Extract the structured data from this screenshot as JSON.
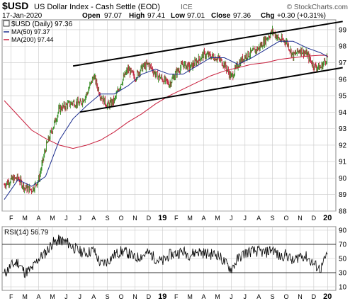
{
  "header": {
    "symbol": "$USD",
    "name": "US Dollar Index - Cash Settle (EOD)",
    "exchange": "ICE",
    "watermark": "© StockCharts.com",
    "date": "17-Jan-2020",
    "open_label": "Open",
    "open": "97.07",
    "high_label": "High",
    "high": "97.41",
    "low_label": "Low",
    "low": "97.01",
    "close_label": "Close",
    "close": "97.36",
    "chg_label": "Chg",
    "chg": "+0.30 (+0.31%)"
  },
  "legend": {
    "price": "$USD (Daily) 97.36",
    "ma50": "MA(50) 97.37",
    "ma200": "MA(200) 97.44",
    "rsi": "RSI(14) 56.79"
  },
  "colors": {
    "up": "#2f8a1e",
    "down": "#c0203a",
    "ma50": "#1e2f8f",
    "ma200": "#c81e3c",
    "channel": "#000000",
    "grid": "#c8c8c8",
    "rsi_line": "#000000",
    "rsi_fill": "#808080"
  },
  "chart_data": [
    {
      "type": "line",
      "title": "$USD US Dollar Index - Cash Settle (EOD)",
      "x_months": [
        "F",
        "M",
        "A",
        "M",
        "J",
        "J",
        "A",
        "S",
        "O",
        "N",
        "D",
        "19",
        "F",
        "M",
        "A",
        "M",
        "J",
        "J",
        "A",
        "S",
        "O",
        "N",
        "D",
        "20"
      ],
      "x_start": "2018-02",
      "x_end": "2020-01-17",
      "ylim": [
        88,
        99.6
      ],
      "y_ticks": [
        88,
        89,
        90,
        91,
        92,
        93,
        94,
        95,
        96,
        97,
        98,
        99
      ],
      "y_scale": "linear",
      "grid": true,
      "legend_position": "top-left",
      "series": [
        {
          "name": "$USD (Daily)",
          "kind": "ohlc",
          "points": [
            [
              0,
              89.6
            ],
            [
              0.5,
              89.9
            ],
            [
              1,
              90.0
            ],
            [
              1.5,
              89.4
            ],
            [
              2,
              89.3
            ],
            [
              2.5,
              89.9
            ],
            [
              3,
              91.8
            ],
            [
              3.5,
              93.0
            ],
            [
              4,
              94.2
            ],
            [
              4.5,
              94.4
            ],
            [
              5,
              94.6
            ],
            [
              5.5,
              94.5
            ],
            [
              6,
              95.1
            ],
            [
              6.5,
              96.2
            ],
            [
              7,
              95.0
            ],
            [
              7.5,
              94.4
            ],
            [
              8,
              94.7
            ],
            [
              8.5,
              95.8
            ],
            [
              9,
              96.6
            ],
            [
              9.5,
              96.1
            ],
            [
              10,
              96.7
            ],
            [
              10.5,
              96.9
            ],
            [
              11,
              96.3
            ],
            [
              11.5,
              96.0
            ],
            [
              12,
              95.7
            ],
            [
              12.5,
              96.4
            ],
            [
              13,
              96.9
            ],
            [
              13.5,
              96.7
            ],
            [
              14,
              97.1
            ],
            [
              14.5,
              97.5
            ],
            [
              15,
              97.4
            ],
            [
              15.5,
              97.3
            ],
            [
              16,
              96.9
            ],
            [
              16.5,
              96.1
            ],
            [
              17,
              96.9
            ],
            [
              17.5,
              97.4
            ],
            [
              18,
              97.6
            ],
            [
              18.5,
              97.9
            ],
            [
              19,
              98.4
            ],
            [
              19.5,
              98.9
            ],
            [
              20,
              98.4
            ],
            [
              20.5,
              98.3
            ],
            [
              21,
              97.4
            ],
            [
              21.5,
              97.8
            ],
            [
              22,
              97.5
            ],
            [
              22.5,
              96.8
            ],
            [
              23,
              96.7
            ],
            [
              23.5,
              97.36
            ]
          ]
        },
        {
          "name": "MA(50)",
          "kind": "line",
          "points": [
            [
              0,
              88.7
            ],
            [
              1,
              89.9
            ],
            [
              2,
              89.5
            ],
            [
              3,
              90.1
            ],
            [
              4,
              92.3
            ],
            [
              5,
              93.6
            ],
            [
              6,
              94.4
            ],
            [
              7,
              95.1
            ],
            [
              8,
              95.1
            ],
            [
              9,
              95.6
            ],
            [
              10,
              96.3
            ],
            [
              11,
              96.6
            ],
            [
              12,
              96.3
            ],
            [
              13,
              96.3
            ],
            [
              14,
              96.8
            ],
            [
              15,
              97.3
            ],
            [
              16,
              97.3
            ],
            [
              17,
              96.9
            ],
            [
              18,
              97.3
            ],
            [
              19,
              97.8
            ],
            [
              20,
              98.3
            ],
            [
              21,
              98.3
            ],
            [
              22,
              97.9
            ],
            [
              23,
              97.6
            ],
            [
              23.5,
              97.37
            ]
          ]
        },
        {
          "name": "MA(200)",
          "kind": "line",
          "points": [
            [
              0,
              94.7
            ],
            [
              1,
              93.8
            ],
            [
              2,
              92.9
            ],
            [
              3,
              92.4
            ],
            [
              4,
              92.0
            ],
            [
              5,
              91.8
            ],
            [
              6,
              92.0
            ],
            [
              7,
              92.3
            ],
            [
              8,
              92.8
            ],
            [
              9,
              93.4
            ],
            [
              10,
              93.9
            ],
            [
              11,
              94.5
            ],
            [
              12,
              95.0
            ],
            [
              13,
              95.4
            ],
            [
              14,
              95.8
            ],
            [
              15,
              96.2
            ],
            [
              16,
              96.5
            ],
            [
              17,
              96.7
            ],
            [
              18,
              96.9
            ],
            [
              19,
              97.0
            ],
            [
              20,
              97.2
            ],
            [
              21,
              97.3
            ],
            [
              22,
              97.4
            ],
            [
              23,
              97.45
            ],
            [
              23.5,
              97.44
            ]
          ]
        },
        {
          "name": "channel-upper",
          "kind": "trendline",
          "points": [
            [
              5.0,
              96.8
            ],
            [
              24.6,
              99.5
            ]
          ]
        },
        {
          "name": "channel-lower",
          "kind": "trendline",
          "points": [
            [
              5.5,
              94.0
            ],
            [
              24.6,
              96.7
            ]
          ]
        }
      ]
    },
    {
      "type": "line",
      "title": "RSI(14) 56.79",
      "ylim": [
        5,
        95
      ],
      "y_ticks": [
        10,
        30,
        50,
        70,
        90
      ],
      "reference_lines": [
        30,
        70
      ],
      "grid": true,
      "series": [
        {
          "name": "RSI(14)",
          "points": [
            [
              0,
              28
            ],
            [
              0.5,
              40
            ],
            [
              1,
              45
            ],
            [
              1.5,
              30
            ],
            [
              2,
              35
            ],
            [
              2.5,
              50
            ],
            [
              3,
              58
            ],
            [
              3.5,
              72
            ],
            [
              4,
              76
            ],
            [
              4.5,
              74
            ],
            [
              5,
              66
            ],
            [
              5.5,
              60
            ],
            [
              6,
              58
            ],
            [
              6.5,
              62
            ],
            [
              7,
              42
            ],
            [
              7.5,
              46
            ],
            [
              8,
              55
            ],
            [
              8.5,
              60
            ],
            [
              9,
              58
            ],
            [
              9.5,
              50
            ],
            [
              10,
              54
            ],
            [
              10.5,
              58
            ],
            [
              11,
              50
            ],
            [
              11.5,
              45
            ],
            [
              12,
              55
            ],
            [
              12.5,
              57
            ],
            [
              13,
              60
            ],
            [
              13.5,
              55
            ],
            [
              14,
              60
            ],
            [
              14.5,
              58
            ],
            [
              15,
              56
            ],
            [
              15.5,
              56
            ],
            [
              16,
              45
            ],
            [
              16.5,
              35
            ],
            [
              17,
              50
            ],
            [
              17.5,
              58
            ],
            [
              18,
              60
            ],
            [
              18.5,
              60
            ],
            [
              19,
              58
            ],
            [
              19.5,
              64
            ],
            [
              20,
              52
            ],
            [
              20.5,
              56
            ],
            [
              21,
              45
            ],
            [
              21.5,
              55
            ],
            [
              22,
              52
            ],
            [
              22.5,
              42
            ],
            [
              23,
              35
            ],
            [
              23.5,
              56.79
            ]
          ]
        }
      ]
    }
  ]
}
